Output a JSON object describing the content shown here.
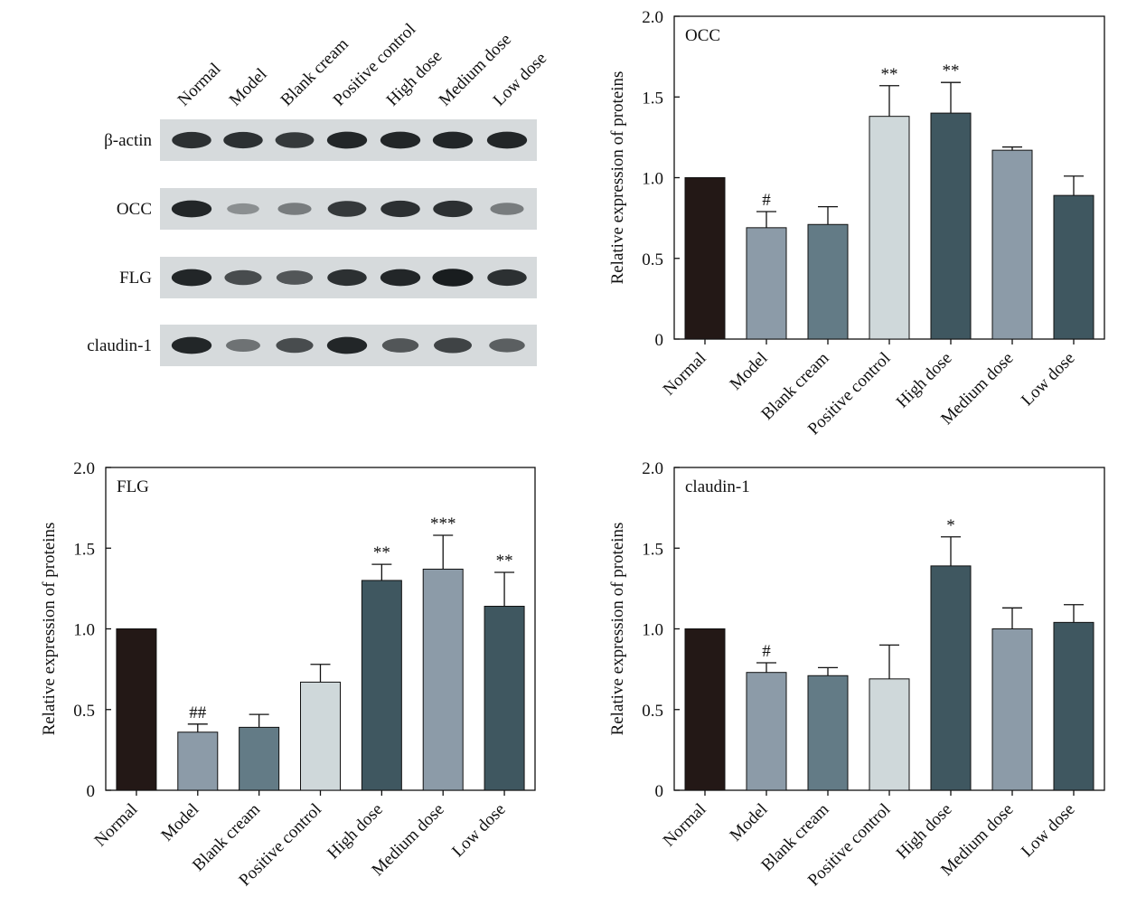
{
  "blot": {
    "lanes": [
      "Normal",
      "Model",
      "Blank cream",
      "Positive control",
      "High dose",
      "Medium dose",
      "Low dose"
    ],
    "rows": [
      {
        "label": "β-actin",
        "intensity": [
          0.85,
          0.85,
          0.8,
          0.9,
          0.9,
          0.9,
          0.9
        ]
      },
      {
        "label": "OCC",
        "intensity": [
          0.9,
          0.35,
          0.45,
          0.8,
          0.85,
          0.85,
          0.45
        ]
      },
      {
        "label": "FLG",
        "intensity": [
          0.9,
          0.7,
          0.65,
          0.85,
          0.9,
          0.95,
          0.85
        ]
      },
      {
        "label": "claudin-1",
        "intensity": [
          0.9,
          0.5,
          0.7,
          0.9,
          0.65,
          0.75,
          0.6
        ]
      }
    ]
  },
  "chart_data": [
    {
      "type": "bar",
      "title": "OCC",
      "ylabel": "Relative expression of proteins",
      "categories": [
        "Normal",
        "Model",
        "Blank cream",
        "Positive control",
        "High dose",
        "Medium dose",
        "Low dose"
      ],
      "values": [
        1.0,
        0.69,
        0.71,
        1.38,
        1.4,
        1.17,
        0.89
      ],
      "errors": [
        0,
        0.1,
        0.11,
        0.19,
        0.19,
        0.02,
        0.12
      ],
      "annotations": [
        "",
        "#",
        "",
        "**",
        "**",
        "",
        ""
      ],
      "ylim": [
        0,
        2.0
      ],
      "yticks": [
        "0",
        "0.5",
        "1.0",
        "1.5",
        "2.0"
      ],
      "colors": [
        "#231816",
        "#8c9ba8",
        "#637b86",
        "#cfd8da",
        "#3f5760",
        "#8c9ba8",
        "#3f5760"
      ]
    },
    {
      "type": "bar",
      "title": "FLG",
      "ylabel": "Relative expression of proteins",
      "categories": [
        "Normal",
        "Model",
        "Blank cream",
        "Positive control",
        "High dose",
        "Medium dose",
        "Low dose"
      ],
      "values": [
        1.0,
        0.36,
        0.39,
        0.67,
        1.3,
        1.37,
        1.14
      ],
      "errors": [
        0,
        0.05,
        0.08,
        0.11,
        0.1,
        0.21,
        0.21
      ],
      "annotations": [
        "",
        "##",
        "",
        "",
        "**",
        "***",
        "**"
      ],
      "ylim": [
        0,
        2.0
      ],
      "yticks": [
        "0",
        "0.5",
        "1.0",
        "1.5",
        "2.0"
      ],
      "colors": [
        "#231816",
        "#8c9ba8",
        "#637b86",
        "#cfd8da",
        "#3f5760",
        "#8c9ba8",
        "#3f5760"
      ]
    },
    {
      "type": "bar",
      "title": "claudin-1",
      "ylabel": "Relative expression of proteins",
      "categories": [
        "Normal",
        "Model",
        "Blank cream",
        "Positive control",
        "High dose",
        "Medium dose",
        "Low dose"
      ],
      "values": [
        1.0,
        0.73,
        0.71,
        0.69,
        1.39,
        1.0,
        1.04
      ],
      "errors": [
        0,
        0.06,
        0.05,
        0.21,
        0.18,
        0.13,
        0.11
      ],
      "annotations": [
        "",
        "#",
        "",
        "",
        "*",
        "",
        ""
      ],
      "ylim": [
        0,
        2.0
      ],
      "yticks": [
        "0",
        "0.5",
        "1.0",
        "1.5",
        "2.0"
      ],
      "colors": [
        "#231816",
        "#8c9ba8",
        "#637b86",
        "#cfd8da",
        "#3f5760",
        "#8c9ba8",
        "#3f5760"
      ]
    }
  ]
}
